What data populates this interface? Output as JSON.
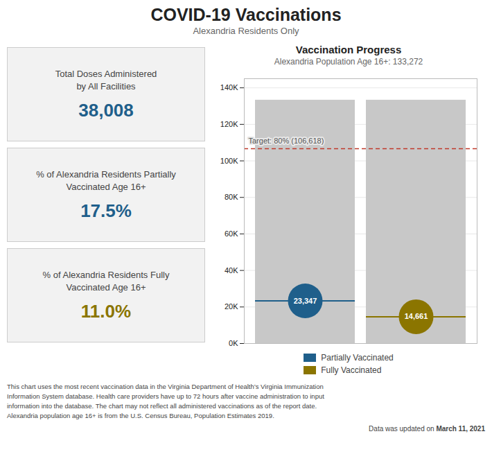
{
  "title": "COVID-19 Vaccinations",
  "subtitle": "Alexandria Residents Only",
  "panels": [
    {
      "labels": [
        "Total Doses Administered",
        "by All Facilities"
      ],
      "value": "38,008",
      "color": "#1f5f8b"
    },
    {
      "labels": [
        "% of Alexandria Residents Partially",
        "Vaccinated Age 16+"
      ],
      "value": "17.5%",
      "color": "#1f5f8b"
    },
    {
      "labels": [
        "% of Alexandria Residents Fully",
        "Vaccinated Age 16+"
      ],
      "value": "11.0%",
      "color": "#8b7500"
    }
  ],
  "chart_data": {
    "type": "bar",
    "title": "Vaccination Progress",
    "subtitle": "Alexandria Population Age 16+: 133,272",
    "categories": [
      null,
      null
    ],
    "values": [
      133272,
      133272
    ],
    "color": "#c8c8c8",
    "series": [
      {
        "name": "Partially Vaccinated",
        "color": "#1f5f8b",
        "values": [
          23347,
          null
        ],
        "value_labels": [
          "23,347",
          null
        ]
      },
      {
        "name": "Fully Vaccinated",
        "color": "#8b7500",
        "values": [
          null,
          14661
        ],
        "value_labels": [
          null,
          "14,661"
        ]
      }
    ],
    "data_labels": true,
    "reference_line": {
      "value": 106618,
      "label": "Target: 80% (106,618)",
      "color": "#c0392b",
      "line_style": "dashed"
    },
    "ylim": [
      0,
      145000
    ],
    "yticks": [
      {
        "value": 0,
        "label": "0K"
      },
      {
        "value": 20000,
        "label": "20K"
      },
      {
        "value": 40000,
        "label": "40K"
      },
      {
        "value": 60000,
        "label": "60K"
      },
      {
        "value": 80000,
        "label": "80K"
      },
      {
        "value": 100000,
        "label": "100K"
      },
      {
        "value": 120000,
        "label": "120K"
      },
      {
        "value": 140000,
        "label": "140K"
      }
    ],
    "grid": true,
    "legend": "bottom",
    "tick_labels": "y"
  },
  "footnote": "This chart uses the most recent vaccination data in the Virginia Department of Health’s Virginia Immunization\nInformation System database. Health care providers have up to 72 hours after vaccine administration to input\ninformation into the database. The chart may not reflect all administered vaccinations as of the report date.\nAlexandria population age 16+ is from the U.S. Census Bureau, Population Estimates 2019.",
  "date_prefix": "Data was updated on ",
  "date": "March 11, 2021"
}
